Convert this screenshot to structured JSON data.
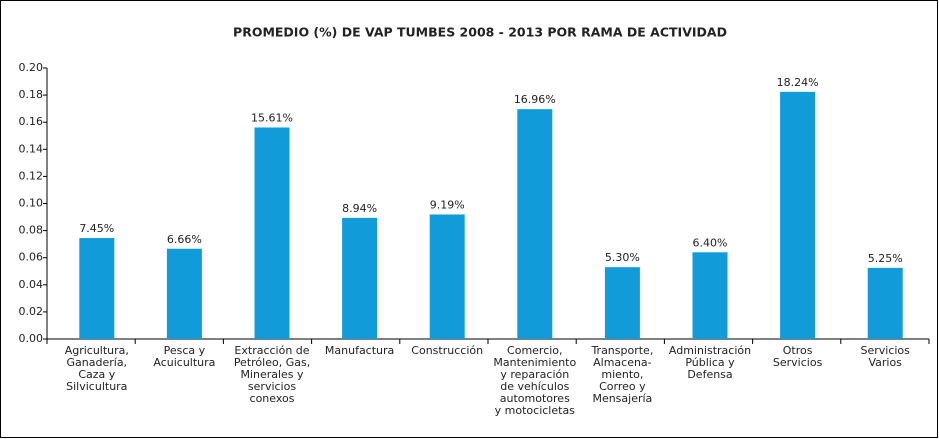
{
  "chart_data": {
    "type": "bar",
    "title": "PROMEDIO (%) DE VAP TUMBES 2008 - 2013 POR RAMA DE ACTIVIDAD",
    "categories": [
      "Agricultura,\nGanadería,\nCaza y\nSilvicultura",
      "Pesca y\nAcuicultura",
      "Extracción de\nPetróleo, Gas,\nMinerales y\nservicios\nconexos",
      "Manufactura",
      "Construcción",
      "Comercio,\nMantenimiento\ny reparación\nde vehículos\nautomotores\ny motocicletas",
      "Transporte,\nAlmacena-\nmiento,\nCorreo y\nMensajería",
      "Administración\nPública y\nDefensa",
      "Otros\nServicios",
      "Servicios\nVarios"
    ],
    "values": [
      0.0745,
      0.0666,
      0.1561,
      0.0894,
      0.0919,
      0.1696,
      0.053,
      0.064,
      0.1824,
      0.0525
    ],
    "value_labels": [
      "7.45%",
      "6.66%",
      "15.61%",
      "8.94%",
      "9.19%",
      "16.96%",
      "5.30%",
      "6.40%",
      "18.24%",
      "5.25%"
    ],
    "color": "#129bd9",
    "ylim": [
      0,
      0.2
    ],
    "yticks": [
      {
        "value": 0,
        "label": "0.00"
      },
      {
        "value": 0.02,
        "label": "0.02"
      },
      {
        "value": 0.04,
        "label": "0.04"
      },
      {
        "value": 0.06,
        "label": "0.06"
      },
      {
        "value": 0.08,
        "label": "0.08"
      },
      {
        "value": 0.1,
        "label": "0.10"
      },
      {
        "value": 0.12,
        "label": "0.12"
      },
      {
        "value": 0.14,
        "label": "0.14"
      },
      {
        "value": 0.16,
        "label": "0.16"
      },
      {
        "value": 0.18,
        "label": "0.18"
      },
      {
        "value": 0.2,
        "label": "0.20"
      }
    ],
    "grid": false
  }
}
